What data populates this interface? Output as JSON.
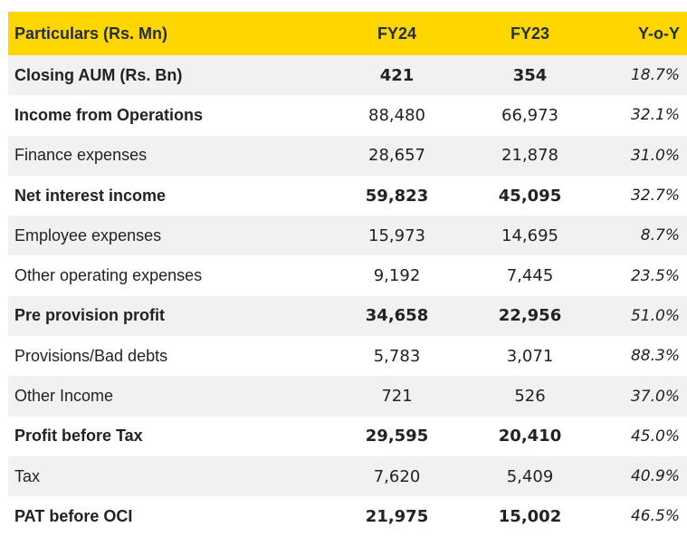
{
  "table": {
    "headers": [
      "Particulars (Rs. Mn)",
      "FY24",
      "FY23",
      "Y-o-Y"
    ],
    "rows": [
      {
        "label": "Closing AUM (Rs. Bn)",
        "fy24": "421",
        "fy23": "354",
        "yoy": "18.7%",
        "bold": true
      },
      {
        "label": "Income from Operations",
        "fy24": "88,480",
        "fy23": "66,973",
        "yoy": "32.1%",
        "bold": "label"
      },
      {
        "label": "Finance expenses",
        "fy24": "28,657",
        "fy23": "21,878",
        "yoy": "31.0%",
        "bold": false
      },
      {
        "label": "Net interest income",
        "fy24": "59,823",
        "fy23": "45,095",
        "yoy": "32.7%",
        "bold": true
      },
      {
        "label": "Employee expenses",
        "fy24": "15,973",
        "fy23": "14,695",
        "yoy": "8.7%",
        "bold": false
      },
      {
        "label": "Other operating expenses",
        "fy24": "9,192",
        "fy23": "7,445",
        "yoy": "23.5%",
        "bold": false
      },
      {
        "label": "Pre provision profit",
        "fy24": "34,658",
        "fy23": "22,956",
        "yoy": "51.0%",
        "bold": true
      },
      {
        "label": "Provisions/Bad debts",
        "fy24": "5,783",
        "fy23": "3,071",
        "yoy": "88.3%",
        "bold": false
      },
      {
        "label": "Other Income",
        "fy24": "721",
        "fy23": "526",
        "yoy": "37.0%",
        "bold": false
      },
      {
        "label": "Profit before Tax",
        "fy24": "29,595",
        "fy23": "20,410",
        "yoy": "45.0%",
        "bold": true
      },
      {
        "label": "Tax",
        "fy24": "7,620",
        "fy23": "5,409",
        "yoy": "40.9%",
        "bold": false
      },
      {
        "label": "PAT before OCI",
        "fy24": "21,975",
        "fy23": "15,002",
        "yoy": "46.5%",
        "bold": true
      }
    ]
  },
  "colors": {
    "header_bg": "#ffd600",
    "stripe": "#f1f1f1"
  }
}
